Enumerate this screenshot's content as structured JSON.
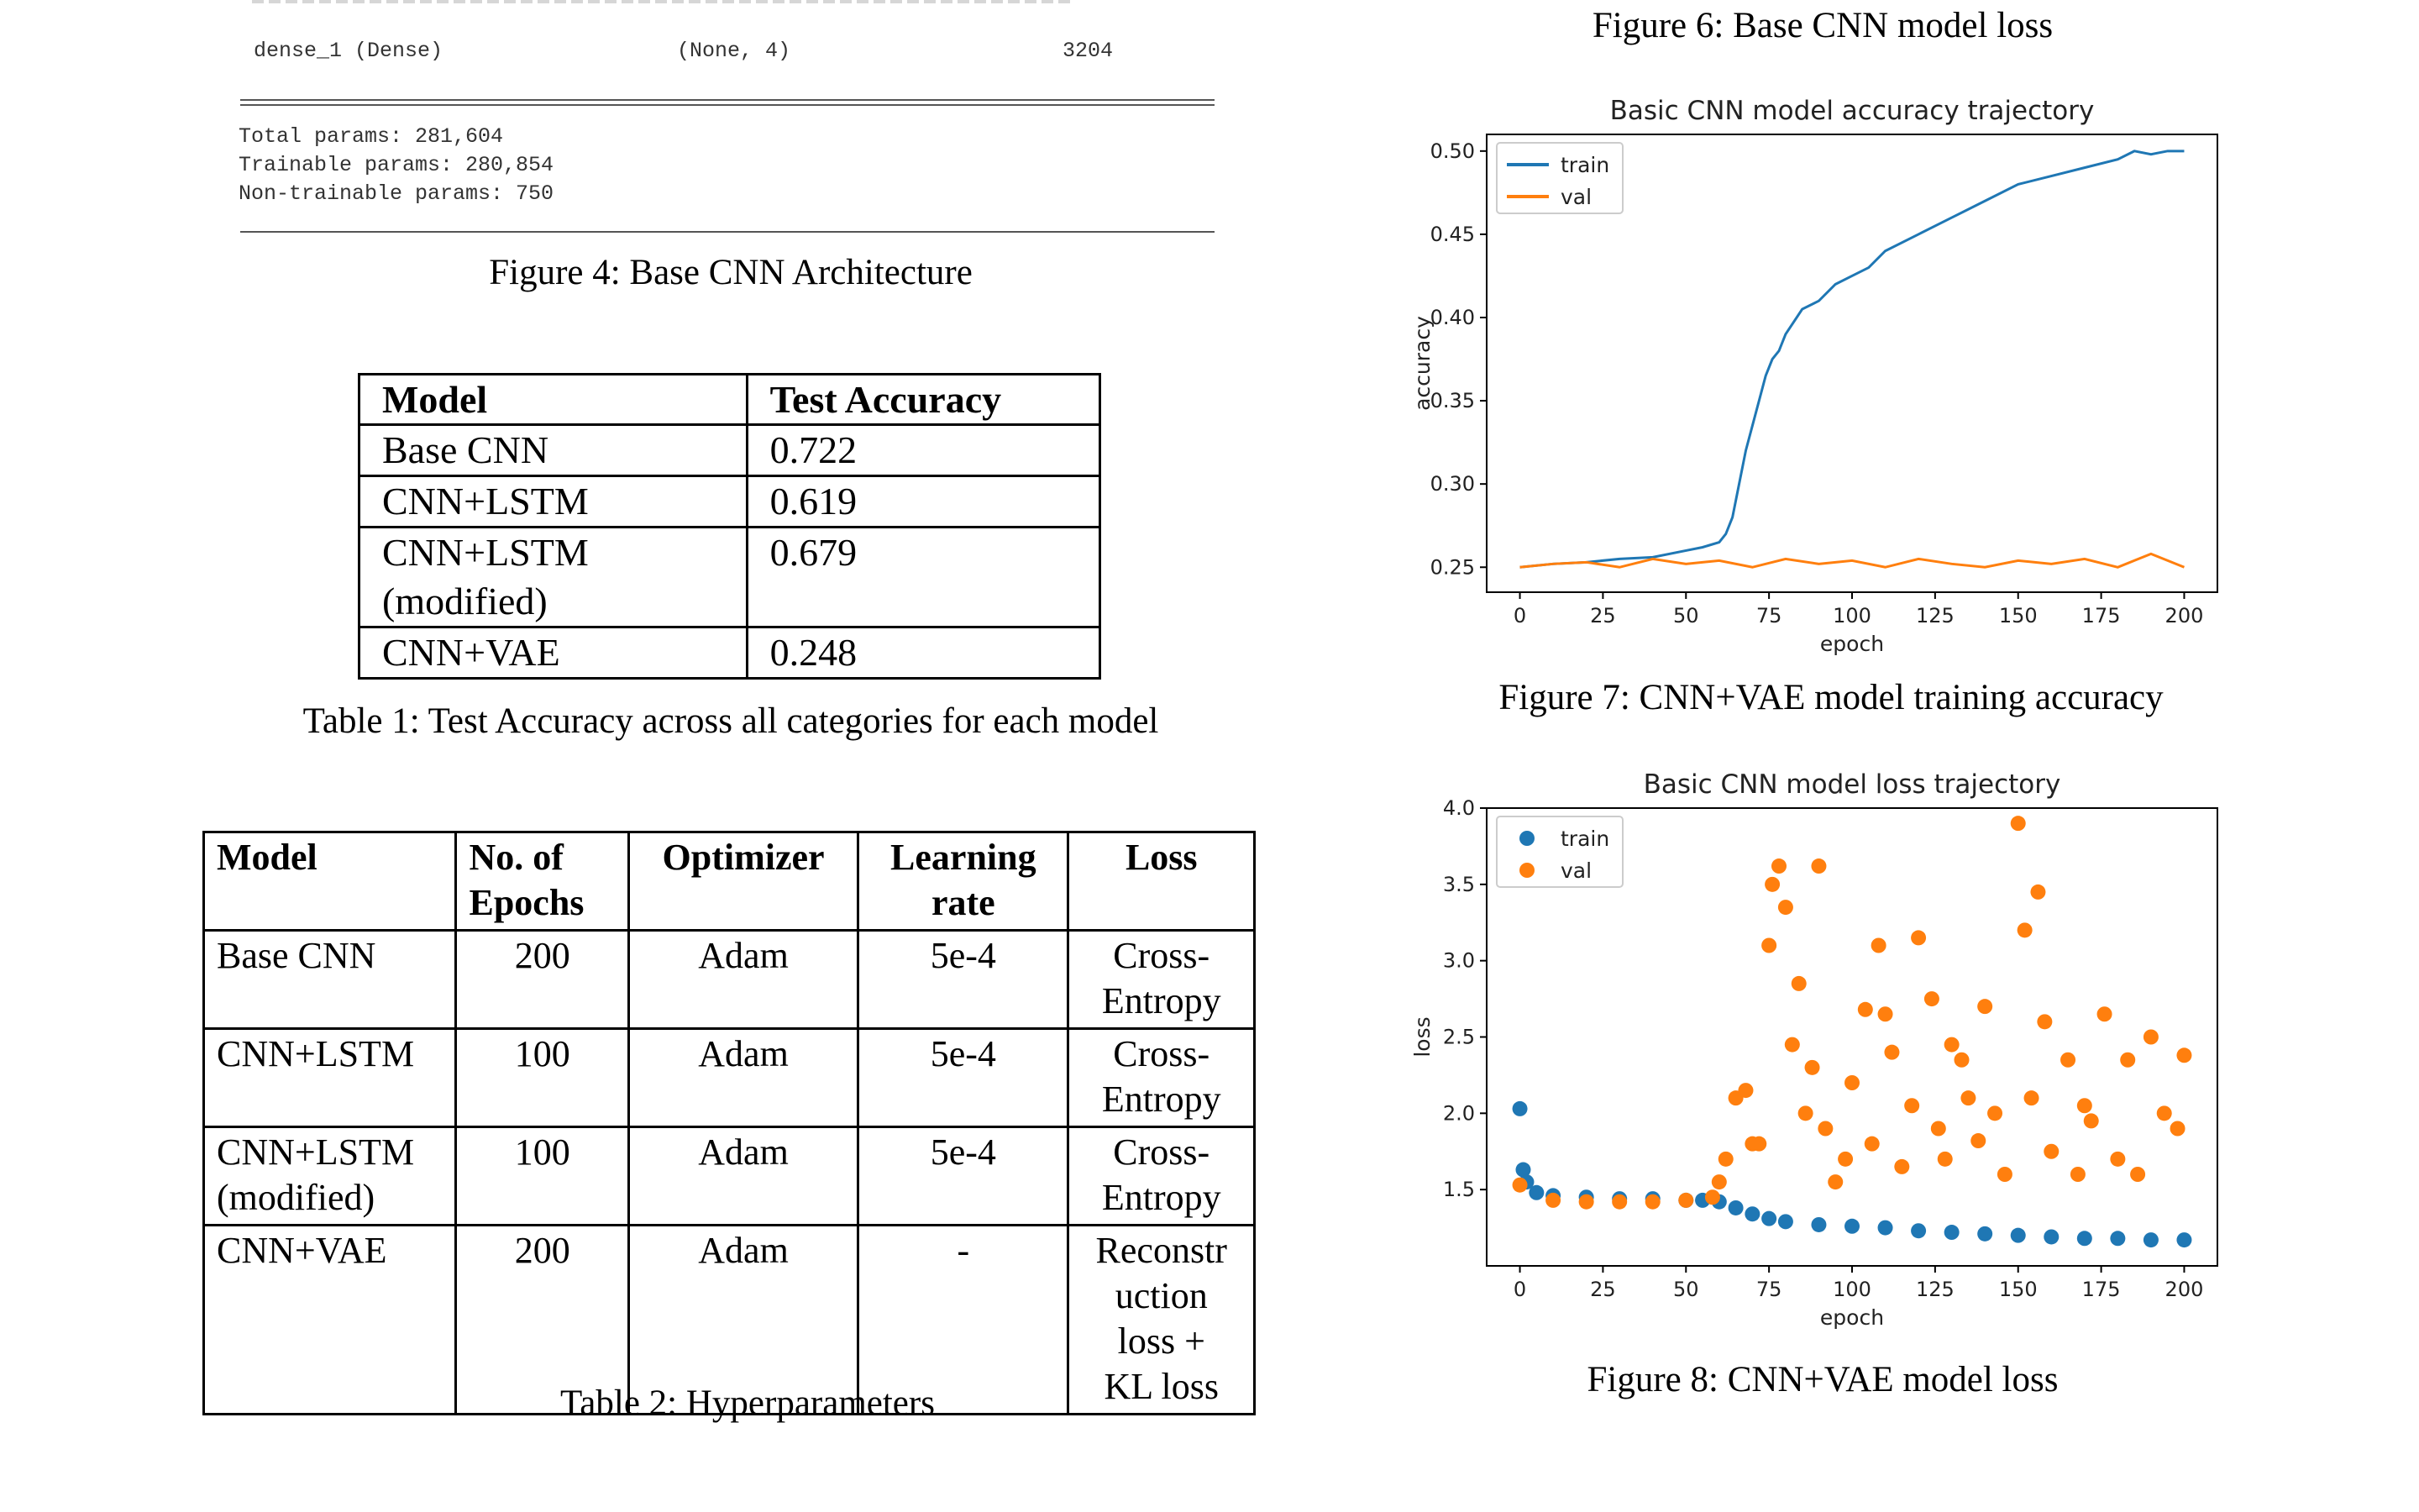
{
  "summary": {
    "top_row": {
      "name": "dense_1 (Dense)",
      "shape": "(None, 4)",
      "params": "3204"
    },
    "total": "Total params: 281,604",
    "trainable": "Trainable params: 280,854",
    "non_trainable": "Non-trainable params: 750"
  },
  "captions": {
    "fig4": "Figure 4: Base CNN Architecture",
    "table1": "Table 1: Test Accuracy across all categories for each model",
    "table2": "Table 2: Hyperparameters",
    "fig6": "Figure 6: Base CNN model loss",
    "fig7": "Figure 7: CNN+VAE model training accuracy",
    "fig8": "Figure 8: CNN+VAE model loss"
  },
  "table1": {
    "headers": [
      "Model",
      "Test Accuracy"
    ],
    "rows": [
      {
        "model": [
          "Base CNN"
        ],
        "acc": "0.722"
      },
      {
        "model": [
          "CNN+LSTM"
        ],
        "acc": "0.619"
      },
      {
        "model": [
          "CNN+LSTM",
          "(modified)"
        ],
        "acc": "0.679"
      },
      {
        "model": [
          "CNN+VAE"
        ],
        "acc": "0.248"
      }
    ]
  },
  "table2": {
    "headers": [
      [
        "Model"
      ],
      [
        "No. of",
        "Epochs"
      ],
      [
        "Optimizer"
      ],
      [
        "Learning",
        "rate"
      ],
      [
        "Loss"
      ]
    ],
    "rows": [
      {
        "model": [
          "Base CNN"
        ],
        "epochs": "200",
        "optimizer": "Adam",
        "lr": "5e-4",
        "loss": [
          "Cross-",
          "Entropy"
        ]
      },
      {
        "model": [
          "CNN+LSTM"
        ],
        "epochs": "100",
        "optimizer": "Adam",
        "lr": "5e-4",
        "loss": [
          "Cross-",
          "Entropy"
        ]
      },
      {
        "model": [
          "CNN+LSTM",
          "(modified)"
        ],
        "epochs": "100",
        "optimizer": "Adam",
        "lr": "5e-4",
        "loss": [
          "Cross-",
          "Entropy"
        ]
      },
      {
        "model": [
          "CNN+VAE"
        ],
        "epochs": "200",
        "optimizer": "Adam",
        "lr": "-",
        "loss": [
          "Reconstr",
          "uction",
          "loss +",
          "KL loss"
        ]
      }
    ]
  },
  "chart_data": [
    {
      "type": "line",
      "title": "Basic CNN model accuracy trajectory",
      "xlabel": "epoch",
      "ylabel": "accuracy",
      "xlim": [
        -10,
        210
      ],
      "ylim": [
        0.235,
        0.51
      ],
      "xticks": [
        0,
        25,
        50,
        75,
        100,
        125,
        150,
        175,
        200
      ],
      "yticks": [
        "0.25",
        "0.30",
        "0.35",
        "0.40",
        "0.45",
        "0.50"
      ],
      "legend": "top-left",
      "series": [
        {
          "name": "train",
          "color": "#1f77b4",
          "x": [
            0,
            10,
            20,
            30,
            40,
            50,
            55,
            60,
            62,
            64,
            66,
            68,
            70,
            72,
            74,
            76,
            78,
            80,
            85,
            90,
            95,
            100,
            105,
            110,
            120,
            130,
            140,
            150,
            160,
            170,
            180,
            185,
            190,
            195,
            200
          ],
          "y": [
            0.25,
            0.252,
            0.253,
            0.255,
            0.256,
            0.26,
            0.262,
            0.265,
            0.27,
            0.28,
            0.3,
            0.32,
            0.335,
            0.35,
            0.365,
            0.375,
            0.38,
            0.39,
            0.405,
            0.41,
            0.42,
            0.425,
            0.43,
            0.44,
            0.45,
            0.46,
            0.47,
            0.48,
            0.485,
            0.49,
            0.495,
            0.5,
            0.498,
            0.5,
            0.5
          ]
        },
        {
          "name": "val",
          "color": "#ff7f0e",
          "x": [
            0,
            10,
            20,
            30,
            40,
            50,
            60,
            70,
            80,
            90,
            100,
            110,
            120,
            130,
            140,
            150,
            160,
            170,
            180,
            190,
            200
          ],
          "y": [
            0.25,
            0.252,
            0.253,
            0.25,
            0.255,
            0.252,
            0.254,
            0.25,
            0.255,
            0.252,
            0.254,
            0.25,
            0.255,
            0.252,
            0.25,
            0.254,
            0.252,
            0.255,
            0.25,
            0.258,
            0.25
          ]
        }
      ]
    },
    {
      "type": "scatter",
      "title": "Basic CNN model loss trajectory",
      "xlabel": "epoch",
      "ylabel": "loss",
      "xlim": [
        -10,
        210
      ],
      "ylim": [
        1.0,
        4.0
      ],
      "xticks": [
        0,
        25,
        50,
        75,
        100,
        125,
        150,
        175,
        200
      ],
      "yticks": [
        "1.5",
        "2.0",
        "2.5",
        "3.0",
        "3.5",
        "4.0"
      ],
      "legend": "top-left",
      "series": [
        {
          "name": "train",
          "color": "#1f77b4",
          "x": [
            0,
            1,
            2,
            5,
            10,
            20,
            30,
            40,
            50,
            55,
            60,
            65,
            70,
            75,
            80,
            90,
            100,
            110,
            120,
            130,
            140,
            150,
            160,
            170,
            180,
            190,
            200
          ],
          "y": [
            2.03,
            1.63,
            1.55,
            1.48,
            1.46,
            1.45,
            1.44,
            1.44,
            1.43,
            1.43,
            1.42,
            1.38,
            1.34,
            1.31,
            1.29,
            1.27,
            1.26,
            1.25,
            1.23,
            1.22,
            1.21,
            1.2,
            1.19,
            1.18,
            1.18,
            1.17,
            1.17
          ]
        },
        {
          "name": "val",
          "color": "#ff7f0e",
          "x": [
            0,
            10,
            20,
            30,
            40,
            50,
            58,
            60,
            62,
            65,
            68,
            70,
            72,
            75,
            76,
            78,
            80,
            82,
            84,
            86,
            88,
            90,
            92,
            95,
            98,
            100,
            104,
            106,
            108,
            110,
            112,
            115,
            118,
            120,
            124,
            126,
            128,
            130,
            133,
            135,
            138,
            140,
            143,
            146,
            150,
            152,
            154,
            156,
            158,
            160,
            165,
            168,
            170,
            172,
            176,
            180,
            183,
            186,
            190,
            194,
            198,
            200
          ],
          "y": [
            1.53,
            1.43,
            1.42,
            1.42,
            1.42,
            1.43,
            1.45,
            1.55,
            1.7,
            2.1,
            2.15,
            1.8,
            1.8,
            3.1,
            3.5,
            3.62,
            3.35,
            2.45,
            2.85,
            2.0,
            2.3,
            3.62,
            1.9,
            1.55,
            1.7,
            2.2,
            2.68,
            1.8,
            3.1,
            2.65,
            2.4,
            1.65,
            2.05,
            3.15,
            2.75,
            1.9,
            1.7,
            2.45,
            2.35,
            2.1,
            1.82,
            2.7,
            2.0,
            1.6,
            3.9,
            3.2,
            2.1,
            3.45,
            2.6,
            1.75,
            2.35,
            1.6,
            2.05,
            1.95,
            2.65,
            1.7,
            2.35,
            1.6,
            2.5,
            2.0,
            1.9,
            2.38
          ]
        }
      ]
    }
  ]
}
